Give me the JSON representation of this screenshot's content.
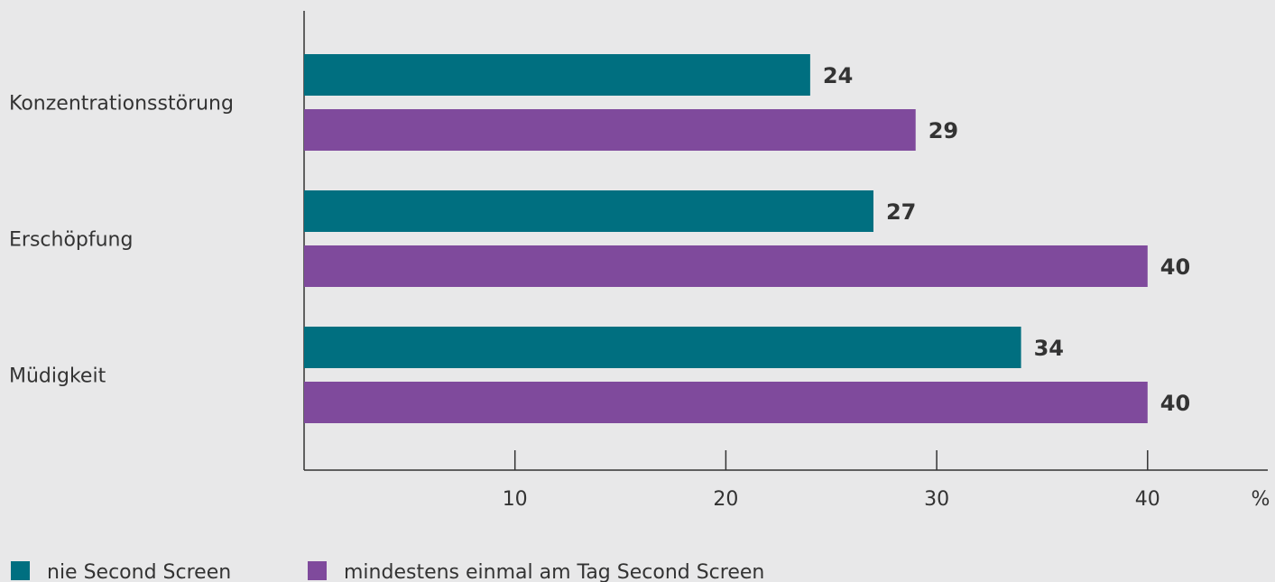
{
  "chart_data": {
    "type": "bar",
    "orientation": "horizontal",
    "categories": [
      "Konzentrationsstörung",
      "Erschöpfung",
      "Müdigkeit"
    ],
    "series": [
      {
        "name": "nie Second Screen",
        "values": [
          24,
          27,
          34
        ]
      },
      {
        "name": "mindestens einmal am Tag Second Screen",
        "values": [
          29,
          40,
          40
        ]
      }
    ],
    "title": "",
    "xlabel": "",
    "ylabel": "",
    "x_ticks": [
      10,
      20,
      30,
      40
    ],
    "x_unit": "%",
    "xlim": [
      0,
      45.7
    ],
    "grid": false,
    "legend_position": "bottom-left"
  },
  "colors": {
    "background": "#e8e8e9",
    "series": [
      "#006f80",
      "#7f4a9c"
    ],
    "axis": "#333333",
    "text": "#333333"
  }
}
